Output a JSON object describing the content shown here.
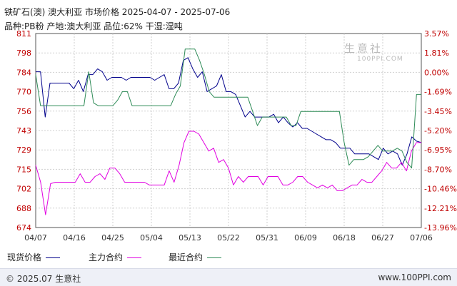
{
  "title": "铁矿石(澳) 澳大利亚 市场价格 2025-04-07 - 2025-07-06",
  "subtitle": "品种:PB粉 产地:澳大利亚 品位:62% 干湿:湿吨",
  "footer": {
    "copyright": "© 2025.07 生意社",
    "url": "www.100PPI.com"
  },
  "watermark": {
    "cn": "生意社",
    "en": "100PPI.COM"
  },
  "legend": [
    {
      "label": "现货价格",
      "color": "#00008b"
    },
    {
      "label": "主力合约",
      "color": "#e100e1"
    },
    {
      "label": "最近合约",
      "color": "#2e8b57"
    }
  ],
  "chart_data": {
    "type": "line",
    "x_ticks": [
      "04/07",
      "04/16",
      "04/25",
      "05/04",
      "05/13",
      "05/22",
      "05/31",
      "06/09",
      "06/18",
      "06/27",
      "07/06"
    ],
    "y_ticks": [
      674,
      688,
      702,
      715,
      729,
      743,
      756,
      770,
      784,
      798,
      811
    ],
    "y2_ticks": [
      "3.57%",
      "1.81%",
      "0.00%",
      "-1.69%",
      "-3.45%",
      "-5.20%",
      "-6.95%",
      "-8.70%",
      "-10.46%",
      "-12.21%",
      "-13.96%"
    ],
    "ylim": [
      674,
      811
    ],
    "grid": true,
    "series": [
      {
        "name": "现货价格",
        "color": "#00008b",
        "values": [
          784,
          784,
          752,
          776,
          776,
          776,
          776,
          776,
          772,
          778,
          770,
          782,
          782,
          786,
          784,
          778,
          780,
          780,
          780,
          778,
          780,
          780,
          780,
          780,
          780,
          778,
          780,
          782,
          772,
          772,
          776,
          792,
          794,
          786,
          780,
          784,
          770,
          772,
          774,
          782,
          770,
          770,
          768,
          760,
          752,
          756,
          752,
          752,
          752,
          752,
          754,
          748,
          752,
          748,
          745,
          748,
          744,
          744,
          742,
          740,
          738,
          736,
          736,
          734,
          730,
          730,
          730,
          726,
          726,
          726,
          726,
          724,
          722,
          730,
          726,
          728,
          726,
          718,
          726,
          738,
          735,
          734
        ]
      },
      {
        "name": "主力合约",
        "color": "#e100e1",
        "values": [
          718,
          706,
          683,
          705,
          706,
          706,
          706,
          706,
          706,
          712,
          706,
          706,
          710,
          712,
          708,
          716,
          716,
          712,
          706,
          706,
          706,
          706,
          706,
          704,
          704,
          704,
          704,
          714,
          706,
          718,
          734,
          742,
          742,
          740,
          734,
          728,
          730,
          720,
          722,
          716,
          704,
          710,
          706,
          710,
          710,
          710,
          704,
          710,
          710,
          710,
          704,
          704,
          706,
          710,
          710,
          706,
          704,
          702,
          704,
          702,
          704,
          700,
          700,
          702,
          704,
          704,
          708,
          706,
          706,
          710,
          714,
          720,
          716,
          716,
          720,
          714,
          728,
          734,
          734
        ]
      },
      {
        "name": "最近合约",
        "color": "#2e8b57",
        "values": [
          782,
          760,
          760,
          760,
          760,
          760,
          760,
          760,
          760,
          760,
          760,
          784,
          762,
          760,
          760,
          760,
          760,
          764,
          770,
          770,
          760,
          760,
          760,
          760,
          760,
          760,
          760,
          760,
          760,
          768,
          774,
          800,
          800,
          800,
          792,
          782,
          770,
          766,
          766,
          766,
          766,
          766,
          766,
          766,
          766,
          756,
          746,
          752,
          752,
          752,
          752,
          752,
          752,
          746,
          746,
          756,
          756,
          756,
          756,
          756,
          756,
          756,
          756,
          756,
          734,
          718,
          722,
          722,
          722,
          724,
          728,
          732,
          728,
          728,
          728,
          730,
          728,
          720,
          716,
          768,
          768
        ]
      }
    ]
  }
}
